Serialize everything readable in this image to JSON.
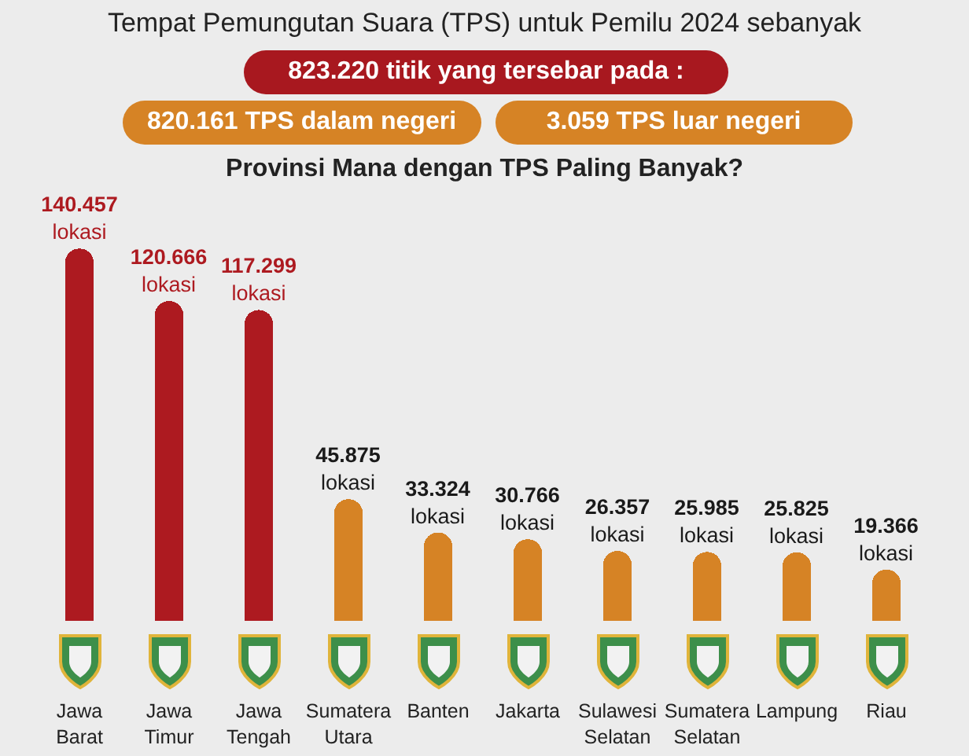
{
  "chart_data": {
    "type": "bar",
    "title": "Tempat Pemungutan Suara (TPS) untuk Pemilu 2024 sebanyak",
    "subtitle": "Provinsi Mana dengan TPS Paling Banyak?",
    "annotations": [
      "823.220 titik yang tersebar pada :",
      "820.161 TPS dalam negeri",
      "3.059 TPS luar negeri"
    ],
    "categories": [
      "Jawa Barat",
      "Jawa Timur",
      "Jawa Tengah",
      "Sumatera Utara",
      "Banten",
      "Jakarta",
      "Sulawesi Selatan",
      "Sumatera Selatan",
      "Lampung",
      "Riau"
    ],
    "values": [
      140457,
      120666,
      117299,
      45875,
      33324,
      30766,
      26357,
      25985,
      25825,
      19366
    ],
    "colors": [
      "#ad1a20",
      "#ad1a20",
      "#ad1a20",
      "#d68325",
      "#d68325",
      "#d68325",
      "#d68325",
      "#d68325",
      "#d68325",
      "#d68325"
    ],
    "value_labels": [
      "140.457 lokasi",
      "120.666 lokasi",
      "117.299 lokasi",
      "45.875 lokasi",
      "33.324 lokasi",
      "30.766 lokasi",
      "26.357 lokasi",
      "25.985 lokasi",
      "25.825 lokasi",
      "19.366 lokasi"
    ],
    "tick_labels": "x"
  }
}
